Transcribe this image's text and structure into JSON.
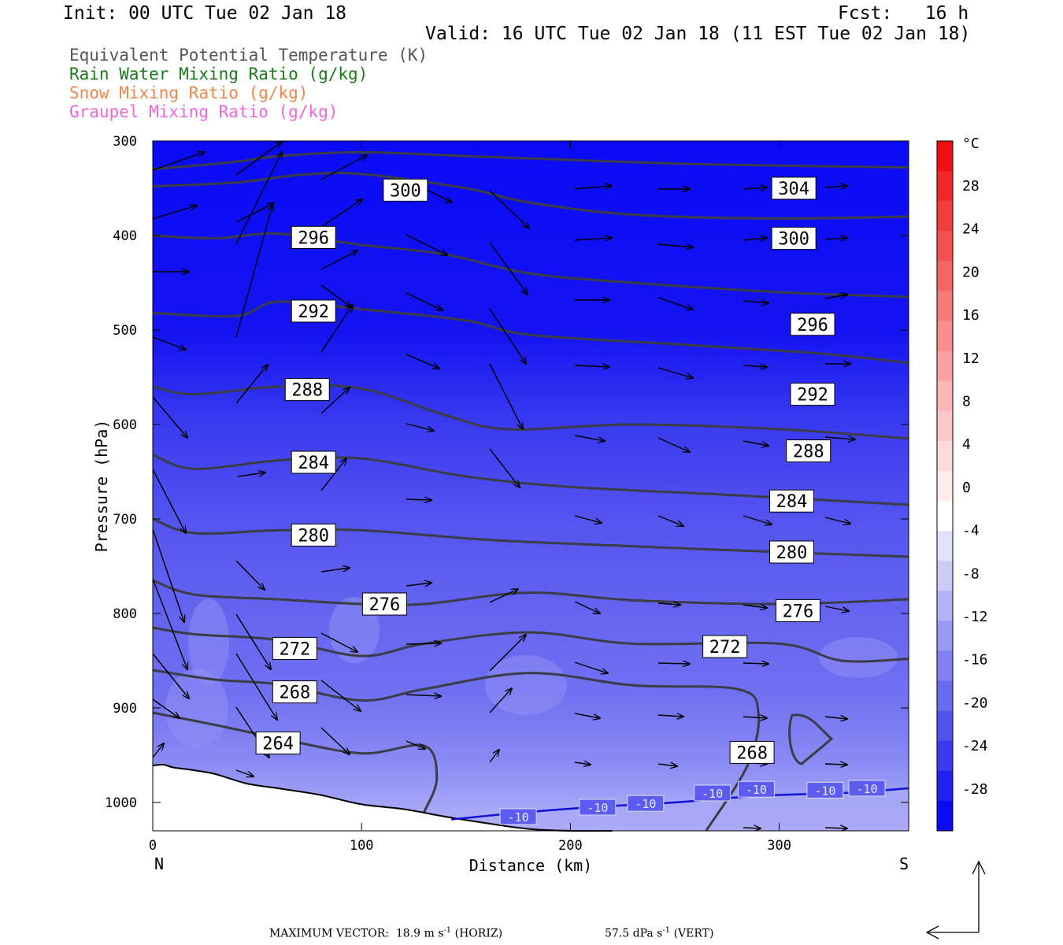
{
  "header": {
    "init": "Init: 00 UTC Tue 02 Jan 18",
    "fcst": "Fcst:   16 h",
    "valid": "Valid: 16 UTC Tue 02 Jan 18 (11 EST Tue 02 Jan 18)"
  },
  "legend": [
    {
      "label": "Equivalent Potential Temperature (K)",
      "color": "#555555"
    },
    {
      "label": "Rain Water Mixing Ratio (g/kg)",
      "color": "#1a7a1a"
    },
    {
      "label": "Snow Mixing Ratio (g/kg)",
      "color": "#f0864a"
    },
    {
      "label": "Graupel Mixing Ratio (g/kg)",
      "color": "#ee66dd"
    }
  ],
  "chart_data": {
    "type": "cross-section",
    "xlabel": "Distance (km)",
    "ylabel": "Pressure (hPa)",
    "xlim": [
      0,
      362
    ],
    "ylim": [
      1030,
      300
    ],
    "x_ticks": [
      "0",
      "100",
      "200",
      "300"
    ],
    "x_tick_values": [
      0,
      100,
      200,
      300
    ],
    "y_ticks": [
      "300",
      "400",
      "500",
      "600",
      "700",
      "800",
      "900",
      "1000"
    ],
    "y_tick_values": [
      300,
      400,
      500,
      600,
      700,
      800,
      900,
      1000
    ],
    "left_end": "N",
    "right_end": "S",
    "colorbar": {
      "unit": "°C",
      "labels": [
        "28",
        "24",
        "20",
        "16",
        "12",
        "8",
        "4",
        "0",
        "-4",
        "-8",
        "-12",
        "-16",
        "-20",
        "-24",
        "-28"
      ],
      "values": [
        28,
        24,
        20,
        16,
        12,
        8,
        4,
        0,
        -4,
        -8,
        -12,
        -16,
        -20,
        -24,
        -28
      ]
    },
    "theta_e_contours": [
      {
        "level": 304,
        "label": "304",
        "x": [
          0,
          40,
          60,
          100,
          150,
          200,
          250,
          300,
          362
        ],
        "p": [
          330,
          322,
          316,
          312,
          316,
          320,
          324,
          326,
          328
        ]
      },
      {
        "level": 300,
        "label": "300",
        "x": [
          0,
          40,
          70,
          100,
          150,
          180,
          230,
          300,
          362
        ],
        "p": [
          348,
          344,
          336,
          335,
          350,
          365,
          378,
          382,
          380
        ]
      },
      {
        "level": 296,
        "label": "296",
        "x": [
          0,
          30,
          60,
          100,
          140,
          180,
          230,
          300,
          362
        ],
        "p": [
          400,
          403,
          398,
          410,
          420,
          440,
          450,
          460,
          465
        ]
      },
      {
        "level": 292,
        "label": "292",
        "x": [
          0,
          40,
          60,
          100,
          150,
          180,
          250,
          320,
          362
        ],
        "p": [
          482,
          485,
          470,
          478,
          490,
          505,
          515,
          525,
          535
        ]
      },
      {
        "level": 288,
        "label": "288",
        "x": [
          0,
          20,
          60,
          100,
          140,
          170,
          230,
          300,
          362
        ],
        "p": [
          560,
          568,
          560,
          562,
          590,
          605,
          600,
          605,
          615
        ]
      },
      {
        "level": 284,
        "label": "284",
        "x": [
          0,
          20,
          60,
          100,
          150,
          200,
          280,
          362
        ],
        "p": [
          632,
          647,
          638,
          636,
          655,
          666,
          675,
          685
        ]
      },
      {
        "level": 280,
        "label": "280",
        "x": [
          0,
          20,
          60,
          100,
          160,
          220,
          300,
          362
        ],
        "p": [
          700,
          715,
          712,
          712,
          722,
          728,
          735,
          740
        ]
      },
      {
        "level": 276,
        "label": "276",
        "x": [
          0,
          20,
          60,
          100,
          130,
          180,
          230,
          300,
          362
        ],
        "p": [
          765,
          780,
          785,
          790,
          790,
          778,
          786,
          790,
          785
        ]
      },
      {
        "level": 272,
        "label": "272",
        "x": [
          0,
          20,
          60,
          100,
          130,
          180,
          230,
          300,
          330,
          362
        ],
        "p": [
          815,
          822,
          828,
          845,
          832,
          820,
          832,
          832,
          850,
          848
        ]
      },
      {
        "level": 268,
        "label": "268",
        "x": [
          0,
          30,
          60,
          100,
          130,
          180,
          230,
          280,
          290,
          285,
          265
        ],
        "p": [
          860,
          870,
          875,
          892,
          880,
          863,
          876,
          880,
          905,
          960,
          1030
        ]
      },
      {
        "level": 264,
        "label": "264",
        "x": [
          0,
          30,
          60,
          100,
          130,
          136,
          130
        ],
        "p": [
          905,
          918,
          932,
          948,
          940,
          975,
          1010
        ]
      }
    ],
    "temperature_contour": {
      "level": -10,
      "label": "-10",
      "x": [
        143,
        170,
        210,
        250,
        290,
        330,
        362
      ],
      "p": [
        1018,
        1012,
        1005,
        1000,
        993,
        990,
        985
      ]
    },
    "contour_labels": [
      {
        "text": "300",
        "x": 121,
        "p": 352
      },
      {
        "text": "304",
        "x": 307,
        "p": 350
      },
      {
        "text": "296",
        "x": 77,
        "p": 402
      },
      {
        "text": "300",
        "x": 307,
        "p": 403
      },
      {
        "text": "292",
        "x": 77,
        "p": 480
      },
      {
        "text": "296",
        "x": 316,
        "p": 494
      },
      {
        "text": "288",
        "x": 74,
        "p": 563
      },
      {
        "text": "292",
        "x": 316,
        "p": 568
      },
      {
        "text": "284",
        "x": 77,
        "p": 640
      },
      {
        "text": "288",
        "x": 314,
        "p": 628
      },
      {
        "text": "284",
        "x": 306,
        "p": 681
      },
      {
        "text": "280",
        "x": 77,
        "p": 717
      },
      {
        "text": "280",
        "x": 306,
        "p": 735
      },
      {
        "text": "276",
        "x": 111,
        "p": 790
      },
      {
        "text": "276",
        "x": 309,
        "p": 797
      },
      {
        "text": "272",
        "x": 68,
        "p": 837
      },
      {
        "text": "272",
        "x": 274,
        "p": 835
      },
      {
        "text": "268",
        "x": 68,
        "p": 883
      },
      {
        "text": "264",
        "x": 60,
        "p": 937
      },
      {
        "text": "268",
        "x": 287,
        "p": 947
      },
      {
        "text": "-10",
        "x": 175,
        "p": 1015
      },
      {
        "text": "-10",
        "x": 213,
        "p": 1005
      },
      {
        "text": "-10",
        "x": 236,
        "p": 1001
      },
      {
        "text": "-10",
        "x": 268,
        "p": 990
      },
      {
        "text": "-10",
        "x": 289,
        "p": 986
      },
      {
        "text": "-10",
        "x": 322,
        "p": 987
      },
      {
        "text": "-10",
        "x": 342,
        "p": 985
      }
    ],
    "terrain_surface": {
      "x": [
        0,
        5,
        10,
        20,
        30,
        45,
        60,
        80,
        100,
        120,
        140,
        160,
        180,
        200,
        220
      ],
      "p": [
        961,
        960,
        963,
        966,
        970,
        980,
        985,
        992,
        1002,
        1007,
        1015,
        1022,
        1028,
        1030,
        1030
      ]
    }
  },
  "footer": {
    "max_vector": "MAXIMUM VECTOR:  18.9 m s",
    "horiz_unit": "(HORIZ)",
    "vert_value": "57.5 dPa s",
    "vert_unit": "(VERT)"
  }
}
